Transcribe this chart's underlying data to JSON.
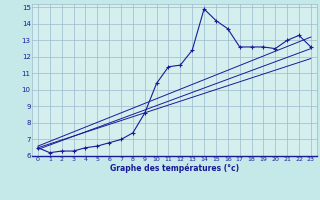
{
  "bg_color": "#c5e8e8",
  "plot_bg_color": "#d5efef",
  "line_color": "#1a1a99",
  "grid_color": "#99bbcc",
  "xlabel": "Graphe des températures (°c)",
  "xlim": [
    -0.5,
    23.5
  ],
  "ylim": [
    6,
    15.2
  ],
  "yticks": [
    6,
    7,
    8,
    9,
    10,
    11,
    12,
    13,
    14,
    15
  ],
  "xticks": [
    0,
    1,
    2,
    3,
    4,
    5,
    6,
    7,
    8,
    9,
    10,
    11,
    12,
    13,
    14,
    15,
    16,
    17,
    18,
    19,
    20,
    21,
    22,
    23
  ],
  "main_x": [
    0,
    1,
    2,
    3,
    4,
    5,
    6,
    7,
    8,
    9,
    10,
    11,
    12,
    13,
    14,
    15,
    16,
    17,
    18,
    19,
    20,
    21,
    22,
    23
  ],
  "main_y": [
    6.5,
    6.2,
    6.3,
    6.3,
    6.5,
    6.6,
    6.8,
    7.0,
    7.4,
    8.6,
    10.4,
    11.4,
    11.5,
    12.4,
    14.9,
    14.2,
    13.7,
    12.6,
    12.6,
    12.6,
    12.5,
    13.0,
    13.3,
    12.6
  ],
  "trend1_x": [
    0,
    23
  ],
  "trend1_y": [
    6.4,
    12.5
  ],
  "trend2_x": [
    0,
    23
  ],
  "trend2_y": [
    6.6,
    13.2
  ],
  "trend3_x": [
    0,
    23
  ],
  "trend3_y": [
    6.5,
    11.9
  ]
}
